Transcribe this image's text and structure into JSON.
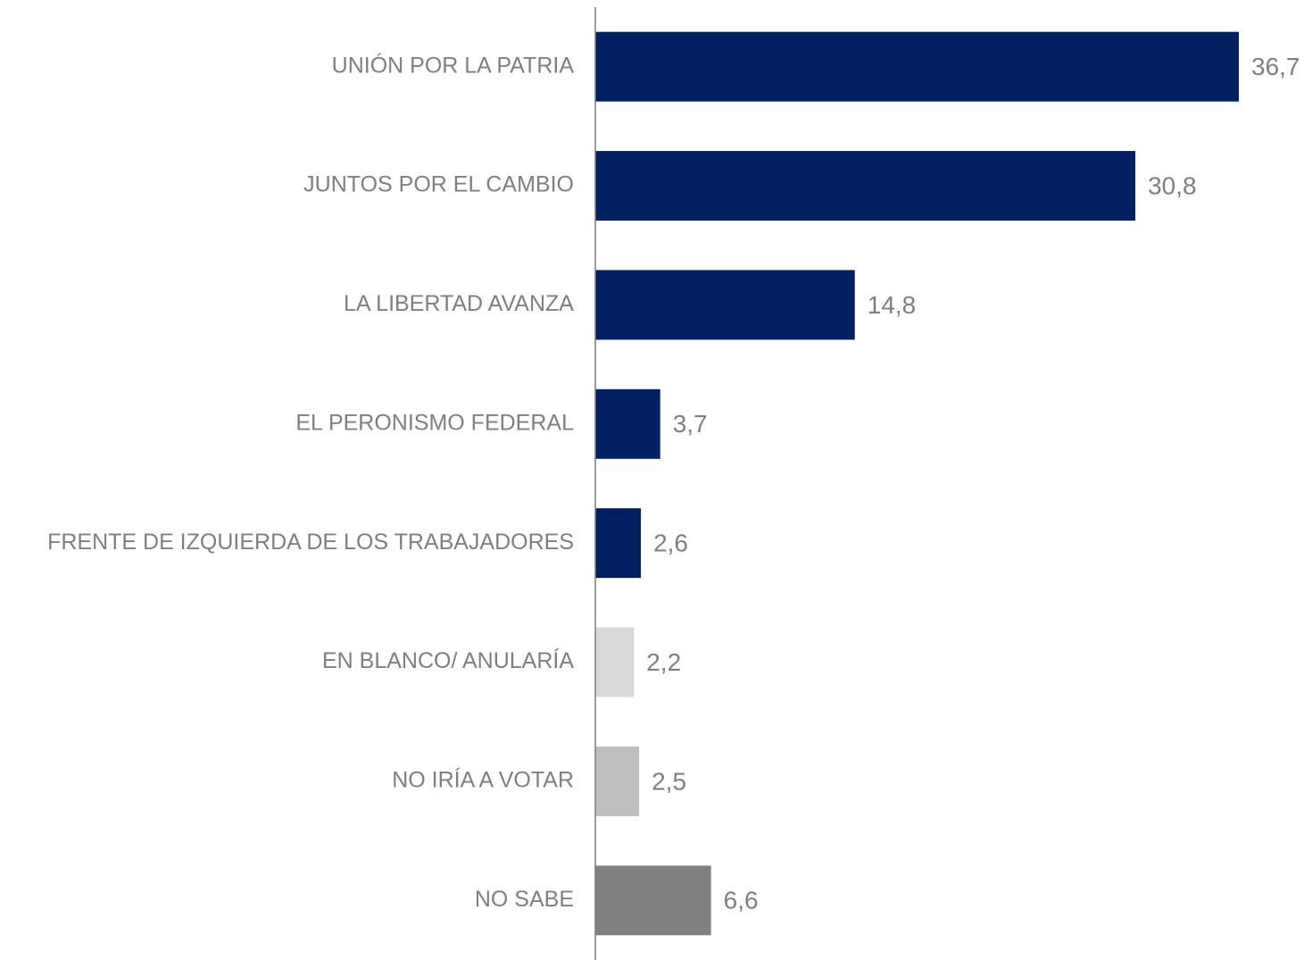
{
  "chart_data": {
    "type": "hbar",
    "categories": [
      "UNIÓN POR LA PATRIA",
      "JUNTOS POR EL CAMBIO",
      "LA LIBERTAD AVANZA",
      "EL PERONISMO FEDERAL",
      "FRENTE DE IZQUIERDA DE LOS TRABAJADORES",
      "EN BLANCO/ ANULARÍA",
      "NO IRÍA A VOTAR",
      "NO SABE"
    ],
    "values": [
      36.7,
      30.8,
      14.8,
      3.7,
      2.6,
      2.2,
      2.5,
      6.6
    ],
    "value_labels": [
      "36,7",
      "30,8",
      "14,8",
      "3,7",
      "2,6",
      "2,2",
      "2,5",
      "6,6"
    ],
    "colors": [
      "#002060",
      "#002060",
      "#002060",
      "#002060",
      "#002060",
      "#d9d9d9",
      "#bfbfbf",
      "#808080"
    ]
  }
}
